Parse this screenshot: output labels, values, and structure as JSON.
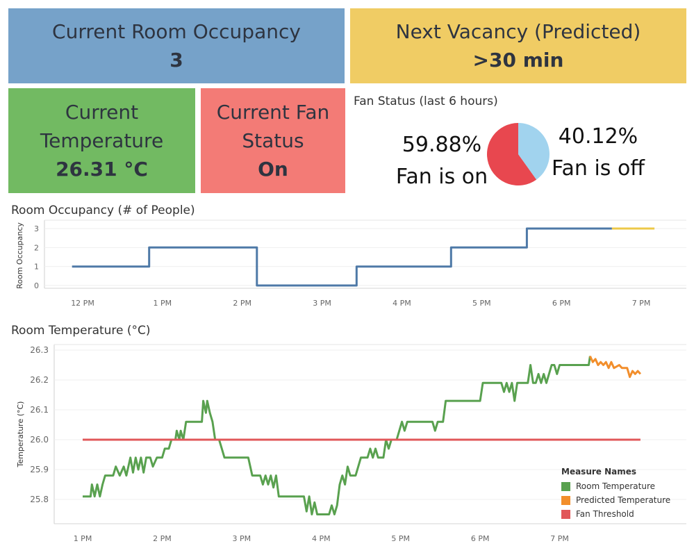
{
  "kpis": {
    "occupancy": {
      "label": "Current Room Occupancy",
      "value": "3",
      "color": "#76a2c9"
    },
    "vacancy": {
      "label": "Next Vacancy (Predicted)",
      "value": ">30 min",
      "color": "#f0cc64"
    },
    "temperature": {
      "label": "Current Temperature",
      "value": "26.31 °C",
      "color": "#72ba62"
    },
    "fan": {
      "label": "Current Fan Status",
      "value": "On",
      "color": "#f37b76"
    }
  },
  "chart_data": [
    {
      "type": "pie",
      "title": "Fan Status (last 6 hours)",
      "slices": [
        {
          "label": "Fan is on",
          "percent_text": "59.88%",
          "value": 59.88,
          "color": "#e8474f"
        },
        {
          "label": "Fan is off",
          "percent_text": "40.12%",
          "value": 40.12,
          "color": "#a1d3ee"
        }
      ]
    },
    {
      "type": "line",
      "title": "Room Occupancy (# of People)",
      "ylabel": "Room Occupancy",
      "xlabel": "",
      "ylim": [
        0,
        3
      ],
      "yticks": [
        "0",
        "1",
        "2",
        "3"
      ],
      "xticks": [
        "12 PM",
        "1 PM",
        "2 PM",
        "3 PM",
        "4 PM",
        "5 PM",
        "6 PM",
        "7 PM"
      ],
      "step": true,
      "series": [
        {
          "color": "#4e79a7",
          "points": [
            [
              "11:52",
              1
            ],
            [
              "12:50",
              1
            ],
            [
              "12:50",
              2
            ],
            [
              "14:11",
              2
            ],
            [
              "14:11",
              0
            ],
            [
              "15:26",
              0
            ],
            [
              "15:26",
              1
            ],
            [
              "16:37",
              1
            ],
            [
              "16:37",
              2
            ],
            [
              "17:34",
              2
            ],
            [
              "17:34",
              3
            ],
            [
              "18:38",
              3
            ]
          ]
        },
        {
          "color": "#edc948",
          "points": [
            [
              "18:38",
              3
            ],
            [
              "19:10",
              3
            ]
          ]
        }
      ]
    },
    {
      "type": "line",
      "title": "Room Temperature (°C)",
      "ylabel": "Temperature (°C)",
      "xlabel": "",
      "ylim": [
        25.75,
        26.3
      ],
      "yticks": [
        "25.8",
        "25.9",
        "26.0",
        "26.1",
        "26.2",
        "26.3"
      ],
      "xticks": [
        "1 PM",
        "2 PM",
        "3 PM",
        "4 PM",
        "5 PM",
        "6 PM",
        "7 PM"
      ],
      "legend_title": "Measure Names",
      "legend_position": "bottom-right",
      "series": [
        {
          "name": "Room Temperature",
          "color": "#59a14f",
          "points": [
            [
              "13:00",
              25.81
            ],
            [
              "13:06",
              25.81
            ],
            [
              "13:07",
              25.85
            ],
            [
              "13:09",
              25.81
            ],
            [
              "13:11",
              25.85
            ],
            [
              "13:13",
              25.81
            ],
            [
              "13:15",
              25.85
            ],
            [
              "13:17",
              25.88
            ],
            [
              "13:23",
              25.88
            ],
            [
              "13:25",
              25.91
            ],
            [
              "13:28",
              25.88
            ],
            [
              "13:31",
              25.91
            ],
            [
              "13:33",
              25.88
            ],
            [
              "13:36",
              25.94
            ],
            [
              "13:38",
              25.89
            ],
            [
              "13:40",
              25.94
            ],
            [
              "13:42",
              25.9
            ],
            [
              "13:44",
              25.94
            ],
            [
              "13:46",
              25.89
            ],
            [
              "13:48",
              25.94
            ],
            [
              "13:51",
              25.94
            ],
            [
              "13:53",
              25.91
            ],
            [
              "13:56",
              25.94
            ],
            [
              "14:00",
              25.94
            ],
            [
              "14:02",
              25.97
            ],
            [
              "14:05",
              25.97
            ],
            [
              "14:07",
              26.0
            ],
            [
              "14:10",
              26.0
            ],
            [
              "14:11",
              26.03
            ],
            [
              "14:13",
              26.0
            ],
            [
              "14:14",
              26.03
            ],
            [
              "14:16",
              26.0
            ],
            [
              "14:18",
              26.06
            ],
            [
              "14:30",
              26.06
            ],
            [
              "14:31",
              26.13
            ],
            [
              "14:33",
              26.09
            ],
            [
              "14:34",
              26.13
            ],
            [
              "14:36",
              26.09
            ],
            [
              "14:38",
              26.06
            ],
            [
              "14:40",
              26.0
            ],
            [
              "14:43",
              26.0
            ],
            [
              "14:45",
              25.97
            ],
            [
              "14:47",
              25.94
            ],
            [
              "15:05",
              25.94
            ],
            [
              "15:08",
              25.88
            ],
            [
              "15:14",
              25.88
            ],
            [
              "15:16",
              25.85
            ],
            [
              "15:18",
              25.88
            ],
            [
              "15:20",
              25.85
            ],
            [
              "15:22",
              25.88
            ],
            [
              "15:24",
              25.84
            ],
            [
              "15:26",
              25.88
            ],
            [
              "15:28",
              25.81
            ],
            [
              "15:47",
              25.81
            ],
            [
              "15:49",
              25.76
            ],
            [
              "15:51",
              25.81
            ],
            [
              "15:53",
              25.75
            ],
            [
              "15:55",
              25.79
            ],
            [
              "15:57",
              25.75
            ],
            [
              "16:06",
              25.75
            ],
            [
              "16:08",
              25.78
            ],
            [
              "16:10",
              25.75
            ],
            [
              "16:12",
              25.78
            ],
            [
              "16:14",
              25.85
            ],
            [
              "16:16",
              25.88
            ],
            [
              "16:18",
              25.85
            ],
            [
              "16:20",
              25.91
            ],
            [
              "16:22",
              25.88
            ],
            [
              "16:26",
              25.88
            ],
            [
              "16:28",
              25.91
            ],
            [
              "16:30",
              25.94
            ],
            [
              "16:35",
              25.94
            ],
            [
              "16:37",
              25.97
            ],
            [
              "16:39",
              25.94
            ],
            [
              "16:41",
              25.97
            ],
            [
              "16:43",
              25.94
            ],
            [
              "16:47",
              25.94
            ],
            [
              "16:49",
              26.0
            ],
            [
              "16:51",
              25.97
            ],
            [
              "16:53",
              26.0
            ],
            [
              "16:57",
              26.0
            ],
            [
              "16:59",
              26.03
            ],
            [
              "17:01",
              26.06
            ],
            [
              "17:03",
              26.03
            ],
            [
              "17:05",
              26.06
            ],
            [
              "17:24",
              26.06
            ],
            [
              "17:26",
              26.03
            ],
            [
              "17:28",
              26.06
            ],
            [
              "17:32",
              26.06
            ],
            [
              "17:34",
              26.13
            ],
            [
              "18:00",
              26.13
            ],
            [
              "18:02",
              26.19
            ],
            [
              "18:16",
              26.19
            ],
            [
              "18:18",
              26.16
            ],
            [
              "18:20",
              26.19
            ],
            [
              "18:22",
              26.16
            ],
            [
              "18:24",
              26.19
            ],
            [
              "18:26",
              26.13
            ],
            [
              "18:28",
              26.19
            ],
            [
              "18:36",
              26.19
            ],
            [
              "18:38",
              26.25
            ],
            [
              "18:40",
              26.19
            ],
            [
              "18:42",
              26.19
            ],
            [
              "18:44",
              26.22
            ],
            [
              "18:46",
              26.19
            ],
            [
              "18:48",
              26.22
            ],
            [
              "18:50",
              26.19
            ],
            [
              "18:52",
              26.22
            ],
            [
              "18:54",
              26.25
            ],
            [
              "18:56",
              26.25
            ],
            [
              "18:58",
              26.22
            ],
            [
              "19:00",
              26.25
            ],
            [
              "19:22",
              26.25
            ],
            [
              "19:23",
              26.28
            ]
          ]
        },
        {
          "name": "Predicted Temperature",
          "color": "#f28e2b",
          "points": [
            [
              "19:23",
              26.28
            ],
            [
              "19:25",
              26.26
            ],
            [
              "19:27",
              26.27
            ],
            [
              "19:29",
              26.25
            ],
            [
              "19:31",
              26.26
            ],
            [
              "19:33",
              26.25
            ],
            [
              "19:35",
              26.26
            ],
            [
              "19:37",
              26.24
            ],
            [
              "19:39",
              26.26
            ],
            [
              "19:41",
              26.24
            ],
            [
              "19:45",
              26.25
            ],
            [
              "19:47",
              26.24
            ],
            [
              "19:51",
              26.24
            ],
            [
              "19:53",
              26.21
            ],
            [
              "19:55",
              26.23
            ],
            [
              "19:57",
              26.22
            ],
            [
              "19:59",
              26.23
            ],
            [
              "20:01",
              26.22
            ]
          ]
        },
        {
          "name": "Fan Threshold",
          "color": "#e15759",
          "points": [
            [
              "13:00",
              26.0
            ],
            [
              "20:01",
              26.0
            ]
          ]
        }
      ]
    }
  ]
}
